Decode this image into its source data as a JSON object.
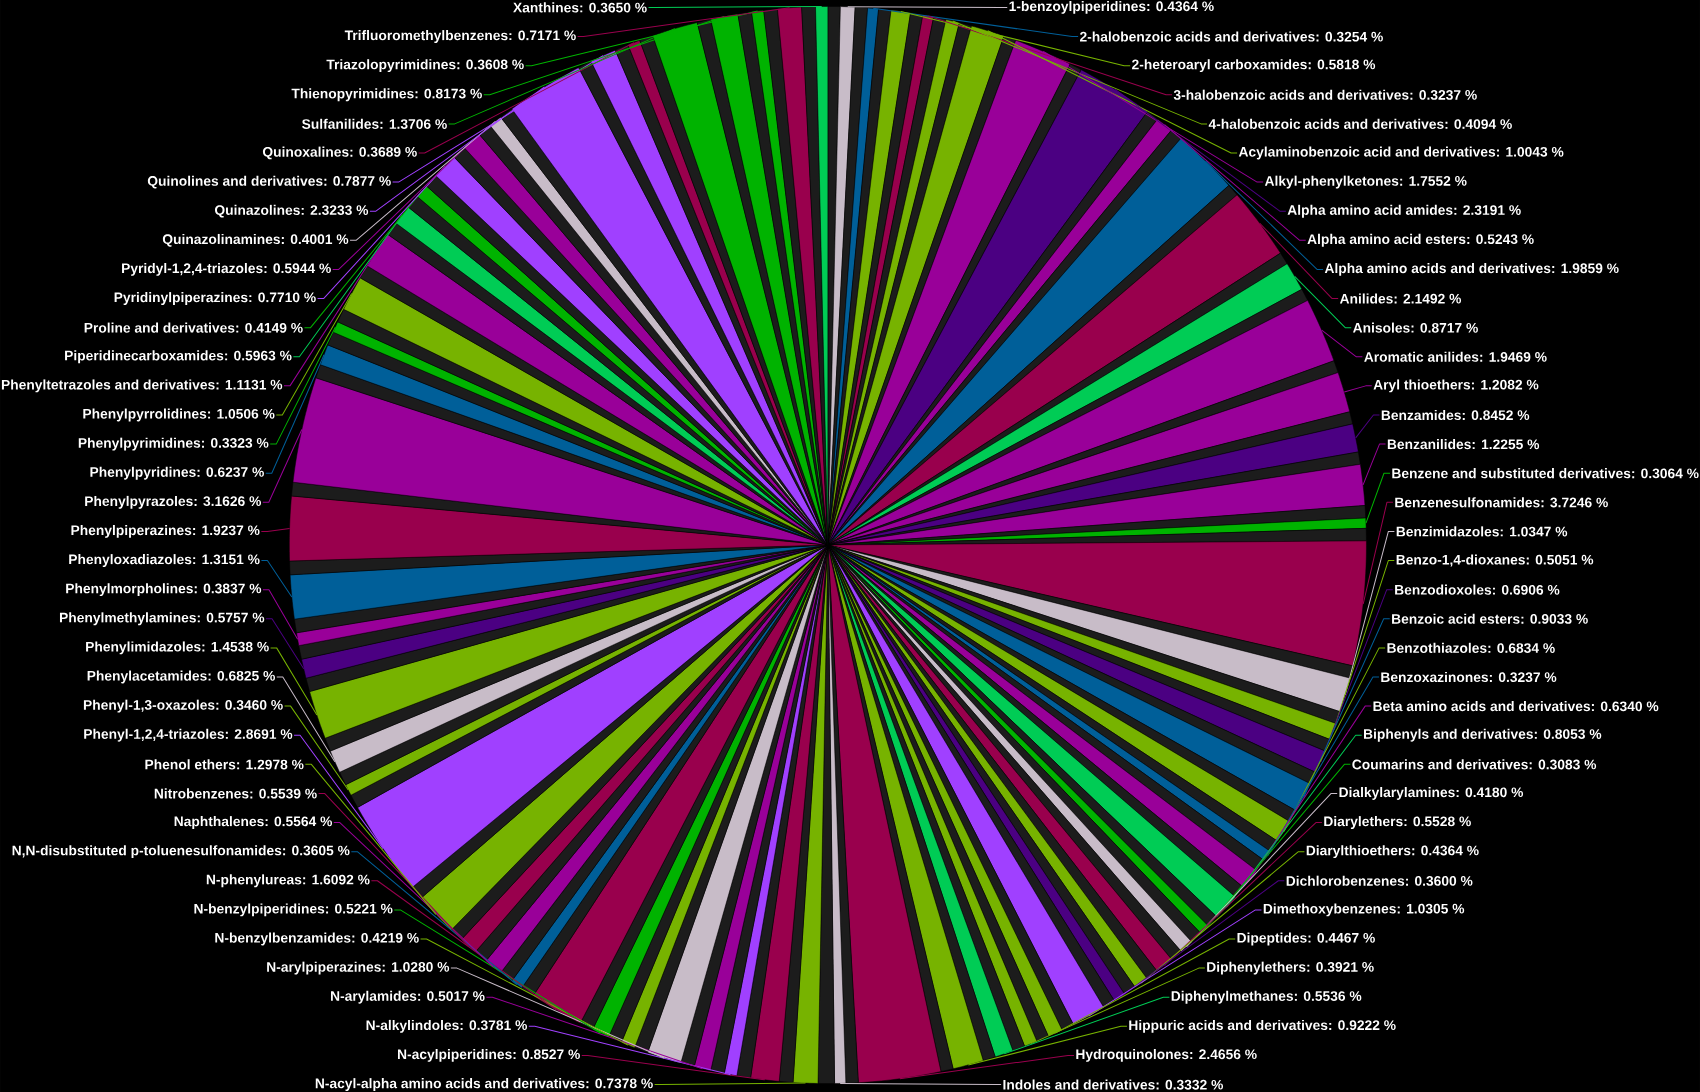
{
  "chart_data": {
    "type": "pie",
    "categories": [
      null,
      "1-benzoylpiperidines",
      null,
      "2-halobenzoic acids and derivatives",
      null,
      "2-heteroaryl carboxamides",
      null,
      "3-halobenzoic acids and derivatives",
      null,
      "4-halobenzoic acids and derivatives",
      null,
      "Acylaminobenzoic acid and derivatives",
      null,
      "Alkyl-phenylketones",
      null,
      "Alpha amino acid amides",
      null,
      "Alpha amino acid esters",
      null,
      "Alpha amino acids and derivatives",
      null,
      "Anilides",
      null,
      "Anisoles",
      null,
      "Aromatic anilides",
      null,
      "Aryl thioethers",
      null,
      "Benzamides",
      null,
      "Benzanilides",
      null,
      "Benzene and substituted derivatives",
      null,
      "Benzenesulfonamides",
      null,
      "Benzimidazoles",
      null,
      "Benzo-1,4-dioxanes",
      null,
      "Benzodioxoles",
      null,
      "Benzoic acid esters",
      null,
      "Benzothiazoles",
      null,
      "Benzoxazinones",
      null,
      "Beta amino acids and derivatives",
      null,
      "Biphenyls and derivatives",
      null,
      "Coumarins and derivatives",
      null,
      "Dialkylarylamines",
      null,
      "Diarylethers",
      null,
      "Diarylthioethers",
      null,
      "Dichlorobenzenes",
      null,
      "Dimethoxybenzenes",
      null,
      "Dipeptides",
      null,
      "Diphenylethers",
      null,
      "Diphenylmethanes",
      null,
      "Hippuric acids and derivatives",
      null,
      "Hydroquinolones",
      null,
      "Indoles and derivatives",
      null,
      "N-acyl-alpha amino acids and derivatives",
      null,
      "N-acylpiperidines",
      null,
      "N-alkylindoles",
      null,
      "N-arylamides",
      null,
      "N-arylpiperazines",
      null,
      "N-benzylbenzamides",
      null,
      "N-benzylpiperidines",
      null,
      "N-phenylureas",
      null,
      "N,N-disubstituted p-toluenesulfonamides",
      null,
      "Naphthalenes",
      null,
      "Nitrobenzenes",
      null,
      "Phenol ethers",
      null,
      "Phenyl-1,2,4-triazoles",
      null,
      "Phenyl-1,3-oxazoles",
      null,
      "Phenylacetamides",
      null,
      "Phenylimidazoles",
      null,
      "Phenylmethylamines",
      null,
      "Phenylmorpholines",
      null,
      "Phenyloxadiazoles",
      null,
      "Phenylpiperazines",
      null,
      "Phenylpyrazoles",
      null,
      "Phenylpyridines",
      null,
      "Phenylpyrimidines",
      null,
      "Phenylpyrrolidines",
      null,
      "Phenyltetrazoles and derivatives",
      null,
      "Piperidinecarboxamides",
      null,
      "Proline and derivatives",
      null,
      "Pyridinylpiperazines",
      null,
      "Pyridyl-1,2,4-triazoles",
      null,
      "Quinazolinamines",
      null,
      "Quinazolines",
      null,
      "Quinolines and derivatives",
      null,
      "Quinoxalines",
      null,
      "Sulfanilides",
      null,
      "Thienopyrimidines",
      null,
      "Triazolopyrimidines",
      null,
      "Trifluoromethylbenzenes",
      null,
      "Xanthines"
    ],
    "values": [
      0.37,
      0.4364,
      0.37,
      0.3254,
      0.37,
      0.5818,
      0.37,
      0.3237,
      0.37,
      0.4094,
      0.37,
      1.0043,
      0.37,
      1.7552,
      0.37,
      2.3191,
      0.37,
      0.5243,
      0.37,
      1.9859,
      0.37,
      2.1492,
      0.37,
      0.8717,
      0.37,
      1.9469,
      0.37,
      1.2082,
      0.37,
      0.8452,
      0.37,
      1.2255,
      0.37,
      0.3064,
      0.37,
      3.7246,
      0.37,
      1.0347,
      0.37,
      0.5051,
      0.37,
      0.6906,
      0.37,
      0.9033,
      0.37,
      0.6834,
      0.37,
      0.3237,
      0.37,
      0.634,
      0.37,
      0.8053,
      0.37,
      0.3083,
      0.37,
      0.418,
      0.37,
      0.5528,
      0.37,
      0.4364,
      0.37,
      0.36,
      0.37,
      1.0305,
      0.37,
      0.4467,
      0.37,
      0.3921,
      0.37,
      0.5536,
      0.37,
      0.9222,
      0.37,
      2.4656,
      0.37,
      0.3332,
      0.49,
      0.7378,
      0.41,
      0.8527,
      0.41,
      0.3781,
      0.41,
      0.5017,
      0.41,
      1.028,
      0.41,
      0.4219,
      0.41,
      0.5221,
      0.41,
      1.6092,
      0.41,
      0.3605,
      0.41,
      0.5564,
      0.41,
      0.5539,
      0.41,
      1.2978,
      0.41,
      2.8691,
      0.41,
      0.346,
      0.41,
      0.6825,
      0.41,
      1.4538,
      0.41,
      0.5757,
      0.41,
      0.3837,
      0.41,
      1.3151,
      0.41,
      1.9237,
      0.41,
      3.1626,
      0.41,
      0.6237,
      0.41,
      0.3323,
      0.41,
      1.0506,
      0.41,
      1.1131,
      0.41,
      0.5963,
      0.41,
      0.4149,
      0.41,
      0.771,
      0.41,
      0.5944,
      0.41,
      0.4001,
      0.41,
      2.3233,
      0.41,
      0.7877,
      0.41,
      0.3689,
      0.41,
      1.3706,
      0.41,
      0.8173,
      0.41,
      0.3608,
      0.41,
      0.7171,
      0.41,
      0.365
    ],
    "value_labels": [
      null,
      ": 0.4364 %",
      null,
      ": 0.3254 %",
      null,
      ": 0.5818 %",
      null,
      ": 0.3237 %",
      null,
      ": 0.4094 %",
      null,
      ": 1.0043 %",
      null,
      ": 1.7552 %",
      null,
      ": 2.3191 %",
      null,
      ": 0.5243 %",
      null,
      ": 1.9859 %",
      null,
      ": 2.1492 %",
      null,
      ": 0.8717 %",
      null,
      ": 1.9469 %",
      null,
      ": 1.2082 %",
      null,
      ": 0.8452 %",
      null,
      ": 1.2255 %",
      null,
      ": 0.3064 %",
      null,
      ": 3.7246 %",
      null,
      ": 1.0347 %",
      null,
      ": 0.5051 %",
      null,
      ": 0.6906 %",
      null,
      ": 0.9033 %",
      null,
      ": 0.6834 %",
      null,
      ": 0.3237 %",
      null,
      ": 0.6340 %",
      null,
      ": 0.8053 %",
      null,
      ": 0.3083 %",
      null,
      ": 0.4180 %",
      null,
      ": 0.5528 %",
      null,
      ": 0.4364 %",
      null,
      ": 0.3600 %",
      null,
      ": 1.0305 %",
      null,
      ": 0.4467 %",
      null,
      ": 0.3921 %",
      null,
      ": 0.5536 %",
      null,
      ": 0.9222 %",
      null,
      ": 2.4656 %",
      null,
      ": 0.3332 %",
      null,
      ": 0.7378 %",
      null,
      ": 0.8527 %",
      null,
      ": 0.3781 %",
      null,
      ": 0.5017 %",
      null,
      ": 1.0280 %",
      null,
      ": 0.4219 %",
      null,
      ": 0.5221 %",
      null,
      ": 1.6092 %",
      null,
      ": 0.3605 %",
      null,
      ": 0.5564 %",
      null,
      ": 0.5539 %",
      null,
      ": 1.2978 %",
      null,
      ": 2.8691 %",
      null,
      ": 0.3460 %",
      null,
      ": 0.6825 %",
      null,
      ": 1.4538 %",
      null,
      ": 0.5757 %",
      null,
      ": 0.3837 %",
      null,
      ": 1.3151 %",
      null,
      ": 1.9237 %",
      null,
      ": 3.1626 %",
      null,
      ": 0.6237 %",
      null,
      ": 0.3323 %",
      null,
      ": 1.0506 %",
      null,
      ": 1.1131 %",
      null,
      ": 0.5963 %",
      null,
      ": 0.4149 %",
      null,
      ": 0.7710 %",
      null,
      ": 0.5944 %",
      null,
      ": 0.4001 %",
      null,
      ": 2.3233 %",
      null,
      ": 0.7877 %",
      null,
      ": 0.3689 %",
      null,
      ": 1.3706 %",
      null,
      ": 0.8173 %",
      null,
      ": 0.3608 %",
      null,
      ": 0.7171 %",
      null,
      ": 0.3650 %"
    ],
    "colors": [
      "#1c1c1c",
      "#c8bcc8",
      "#1c1c1c",
      "#005f99",
      "#1c1c1c",
      "#77b300",
      "#1c1c1c",
      "#99004d",
      "#1c1c1c",
      "#77b300",
      "#1c1c1c",
      "#77b300",
      "#1c1c1c",
      "#990099",
      "#1c1c1c",
      "#4b0082",
      "#1c1c1c",
      "#990099",
      "#1c1c1c",
      "#005f99",
      "#1c1c1c",
      "#99004d",
      "#1c1c1c",
      "#00cc55",
      "#1c1c1c",
      "#990099",
      "#1c1c1c",
      "#990099",
      "#1c1c1c",
      "#4b0082",
      "#1c1c1c",
      "#990099",
      "#1c1c1c",
      "#00b300",
      "#1c1c1c",
      "#99004d",
      "#1c1c1c",
      "#c8bcc8",
      "#1c1c1c",
      "#77b300",
      "#1c1c1c",
      "#4b0082",
      "#1c1c1c",
      "#005f99",
      "#1c1c1c",
      "#77b300",
      "#1c1c1c",
      "#005f99",
      "#1c1c1c",
      "#990099",
      "#1c1c1c",
      "#00cc55",
      "#1c1c1c",
      "#00b300",
      "#1c1c1c",
      "#c8bcc8",
      "#1c1c1c",
      "#99004d",
      "#1c1c1c",
      "#77b300",
      "#1c1c1c",
      "#4b0082",
      "#1c1c1c",
      "#a040ff",
      "#1c1c1c",
      "#77b300",
      "#1c1c1c",
      "#77b300",
      "#1c1c1c",
      "#00cc55",
      "#1c1c1c",
      "#77b300",
      "#1c1c1c",
      "#99004d",
      "#1c1c1c",
      "#c8bcc8",
      "#1c1c1c",
      "#77b300",
      "#1c1c1c",
      "#99004d",
      "#1c1c1c",
      "#a040ff",
      "#1c1c1c",
      "#990099",
      "#1c1c1c",
      "#c8bcc8",
      "#1c1c1c",
      "#77b300",
      "#1c1c1c",
      "#00b300",
      "#1c1c1c",
      "#99004d",
      "#1c1c1c",
      "#005f99",
      "#1c1c1c",
      "#990099",
      "#1c1c1c",
      "#99004d",
      "#1c1c1c",
      "#77b300",
      "#1c1c1c",
      "#a040ff",
      "#1c1c1c",
      "#77b300",
      "#1c1c1c",
      "#c8bcc8",
      "#1c1c1c",
      "#77b300",
      "#1c1c1c",
      "#4b0082",
      "#1c1c1c",
      "#990099",
      "#1c1c1c",
      "#005f99",
      "#1c1c1c",
      "#99004d",
      "#1c1c1c",
      "#990099",
      "#1c1c1c",
      "#005f99",
      "#1c1c1c",
      "#00b300",
      "#1c1c1c",
      "#77b300",
      "#1c1c1c",
      "#990099",
      "#1c1c1c",
      "#00cc55",
      "#1c1c1c",
      "#00b300",
      "#1c1c1c",
      "#a040ff",
      "#1c1c1c",
      "#990099",
      "#1c1c1c",
      "#c8bcc8",
      "#1c1c1c",
      "#a040ff",
      "#1c1c1c",
      "#a040ff",
      "#1c1c1c",
      "#99004d",
      "#1c1c1c",
      "#00b300",
      "#1c1c1c",
      "#00b300",
      "#1c1c1c",
      "#00b300",
      "#1c1c1c",
      "#99004d",
      "#1c1c1c",
      "#00cc55"
    ]
  }
}
